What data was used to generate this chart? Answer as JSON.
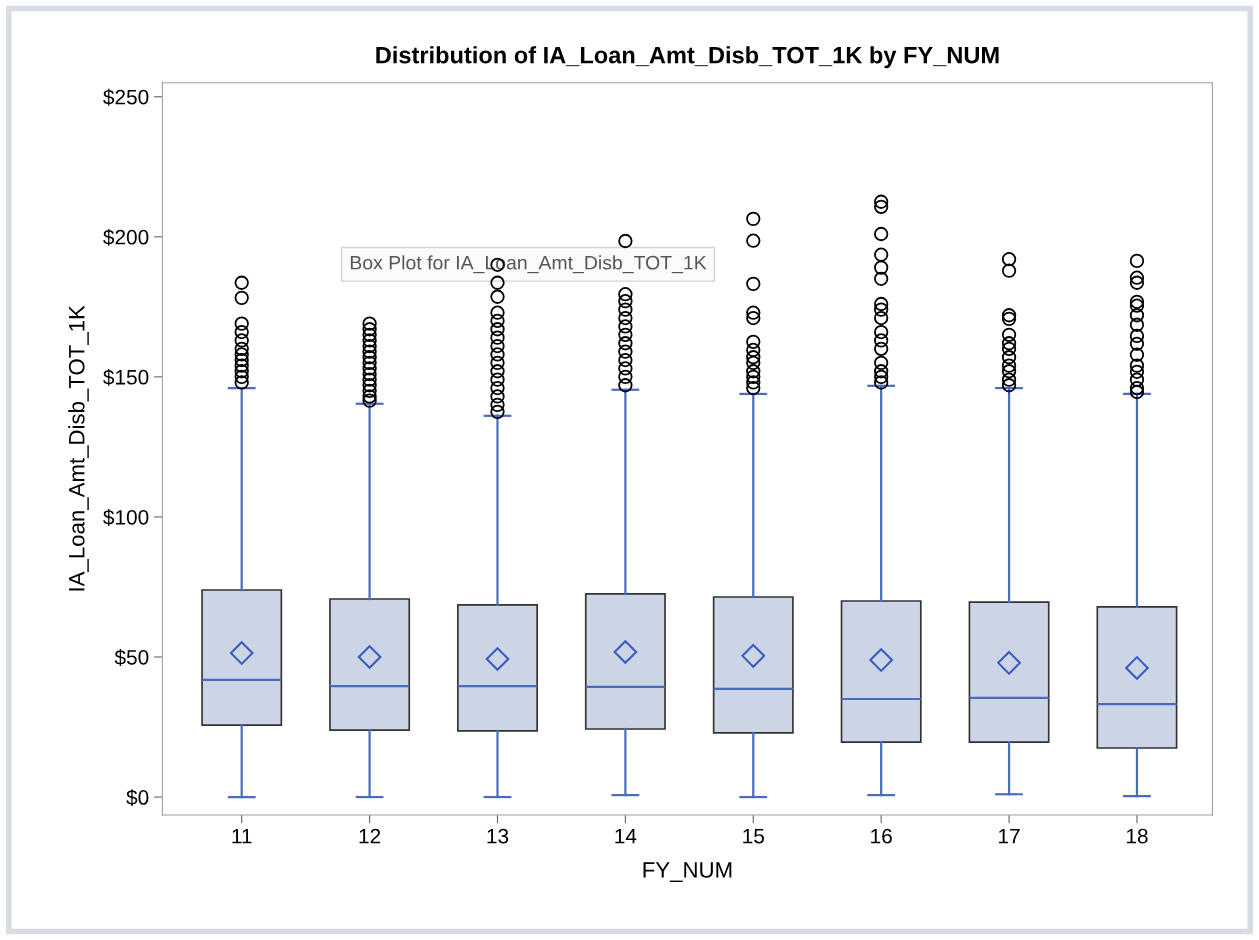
{
  "chart_data": {
    "type": "box",
    "title": "Distribution of IA_Loan_Amt_Disb_TOT_1K by FY_NUM",
    "xlabel": "FY_NUM",
    "ylabel": "IA_Loan_Amt_Disb_TOT_1K",
    "annotations": [
      "Box Plot for IA_Loan_Amt_Disb_TOT_1K"
    ],
    "categories": [
      "11",
      "12",
      "13",
      "14",
      "15",
      "16",
      "17",
      "18"
    ],
    "ylim": [
      -6.4,
      255
    ],
    "yticks": [
      {
        "value": 0,
        "label": "$0"
      },
      {
        "value": 50,
        "label": "$50"
      },
      {
        "value": 100,
        "label": "$100"
      },
      {
        "value": 150,
        "label": "$150"
      },
      {
        "value": 200,
        "label": "$200"
      },
      {
        "value": 250,
        "label": "$250"
      }
    ],
    "grid": false,
    "legend": false,
    "series": [
      {
        "color": "#cbd5e6",
        "boxes": [
          {
            "low": 0,
            "q1": 25.7,
            "median": 41.8,
            "q3": 73.9,
            "high": 146,
            "mean": 51.4,
            "outliers": [
              183.6,
              178.2,
              169,
              166,
              163,
              160,
              158,
              156,
              154,
              152,
              150,
              148
            ]
          },
          {
            "low": 0,
            "q1": 23.9,
            "median": 39.6,
            "q3": 70.7,
            "high": 140.4,
            "mean": 50,
            "outliers": [
              169,
              167,
              165,
              163,
              161,
              159,
              157,
              155,
              153,
              151,
              149,
              147,
              145,
              143,
              141.5
            ]
          },
          {
            "low": 0,
            "q1": 23.6,
            "median": 39.6,
            "q3": 68.6,
            "high": 136.1,
            "mean": 49.3,
            "outliers": [
              190,
              183.6,
              178.6,
              172.9,
              170,
              167,
              164,
              161,
              158,
              155,
              152,
              149,
              146,
              143,
              140,
              137.5
            ]
          },
          {
            "low": 0.7,
            "q1": 24.3,
            "median": 39.3,
            "q3": 72.5,
            "high": 145.4,
            "mean": 51.8,
            "outliers": [
              198.5,
              179.5,
              177,
              174,
              171,
              168,
              165,
              162,
              159,
              156,
              153,
              150,
              147
            ]
          },
          {
            "low": 0,
            "q1": 22.9,
            "median": 38.6,
            "q3": 71.4,
            "high": 143.9,
            "mean": 50.4,
            "outliers": [
              206.4,
              198.6,
              183.2,
              172.9,
              171,
              162.5,
              159.6,
              157,
              155,
              152,
              150,
              148,
              146
            ]
          },
          {
            "low": 0.7,
            "q1": 19.6,
            "median": 35,
            "q3": 70,
            "high": 146.8,
            "mean": 48.9,
            "outliers": [
              212.5,
              210.7,
              201,
              193.6,
              189,
              185,
              176,
              174,
              171,
              166,
              163,
              160,
              155,
              152,
              150,
              148
            ]
          },
          {
            "low": 1,
            "q1": 19.6,
            "median": 35.4,
            "q3": 69.6,
            "high": 146,
            "mean": 47.9,
            "outliers": [
              192,
              187.9,
              172,
              170.7,
              165,
              162,
              160,
              157,
              154,
              152,
              149,
              147
            ]
          },
          {
            "low": 0.3,
            "q1": 17.5,
            "median": 33.2,
            "q3": 67.9,
            "high": 143.9,
            "mean": 46.1,
            "outliers": [
              191.4,
              185.4,
              183.6,
              176.8,
              175.4,
              172,
              168.6,
              164.6,
              161.8,
              157.9,
              154,
              151.8,
              149,
              146,
              144.6
            ]
          }
        ]
      }
    ]
  }
}
